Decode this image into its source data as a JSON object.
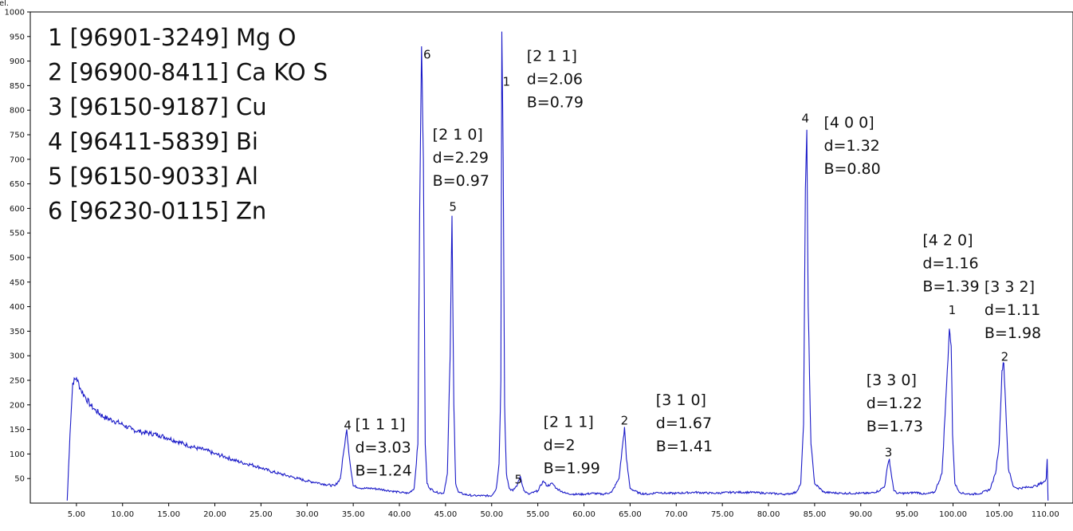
{
  "chart_data": {
    "type": "line",
    "ylabel": "el.",
    "xlim": [
      0,
      113
    ],
    "ylim": [
      0,
      1000
    ],
    "x_ticks": [
      "5.00",
      "10.00",
      "15.00",
      "20.00",
      "25.00",
      "30.00",
      "35.00",
      "40.00",
      "45.00",
      "50.00",
      "55.00",
      "60.00",
      "65.00",
      "70.00",
      "75.00",
      "80.00",
      "85.00",
      "90.00",
      "95.00",
      "100.00",
      "105.00",
      "110.00"
    ],
    "y_ticks": [
      "50",
      "100",
      "150",
      "200",
      "250",
      "300",
      "350",
      "400",
      "450",
      "500",
      "550",
      "600",
      "650",
      "700",
      "750",
      "800",
      "850",
      "900",
      "950",
      "1000"
    ],
    "colors": {
      "line": "#1a1ac8",
      "axis": "#000000"
    },
    "legend": [
      "1 [96901-3249] Mg O",
      "2 [96900-8411] Ca KO S",
      "3 [96150-9187] Cu",
      "4 [96411-5839] Bi",
      "5 [96150-9033] Al",
      "6 [96230-0115] Zn"
    ],
    "peak_labels": [
      {
        "label": "4",
        "x": 34.4,
        "y": 150
      },
      {
        "label": "6",
        "x": 43.0,
        "y": 905
      },
      {
        "label": "5",
        "x": 45.8,
        "y": 595
      },
      {
        "label": "1",
        "x": 51.6,
        "y": 850
      },
      {
        "label": "5",
        "x": 52.9,
        "y": 40
      },
      {
        "label": "2",
        "x": 64.4,
        "y": 160
      },
      {
        "label": "4",
        "x": 84.0,
        "y": 775
      },
      {
        "label": "3",
        "x": 93.0,
        "y": 95
      },
      {
        "label": "1",
        "x": 99.9,
        "y": 385
      },
      {
        "label": "2",
        "x": 105.6,
        "y": 290
      }
    ],
    "annotations": [
      {
        "lines": [
          "[1 1 1]",
          "d=3.03",
          "B=1.24"
        ],
        "x": 35.2,
        "y": 150
      },
      {
        "lines": [
          "[2 1 0]",
          "d=2.29",
          "B=0.97"
        ],
        "x": 43.6,
        "y": 740
      },
      {
        "lines": [
          "[2 1 1]",
          "d=2.06",
          "B=0.79"
        ],
        "x": 53.8,
        "y": 900
      },
      {
        "lines": [
          "[2 1 1]",
          "d=2",
          "B=1.99"
        ],
        "x": 55.6,
        "y": 155
      },
      {
        "lines": [
          "[3 1 0]",
          "d=1.67",
          "B=1.41"
        ],
        "x": 67.8,
        "y": 200
      },
      {
        "lines": [
          "[4 0 0]",
          "d=1.32",
          "B=0.80"
        ],
        "x": 86.0,
        "y": 765
      },
      {
        "lines": [
          "[3 3 0]",
          "d=1.22",
          "B=1.73"
        ],
        "x": 90.6,
        "y": 240
      },
      {
        "lines": [
          "[4 2 0]",
          "d=1.16",
          "B=1.39"
        ],
        "x": 96.7,
        "y": 525
      },
      {
        "lines": [
          "[3 3 2]",
          "d=1.11",
          "B=1.98"
        ],
        "x": 103.4,
        "y": 430
      }
    ],
    "series": [
      {
        "x": [
          4.0,
          4.3,
          4.6,
          5.0,
          5.5,
          6.0,
          6.5,
          7.0,
          8.0,
          9.0,
          10.0,
          11.0,
          12.0,
          13.0,
          14.0,
          15.0,
          16.0,
          17.0,
          18.0,
          19.0,
          20.0,
          21.0,
          22.0,
          23.0,
          24.0,
          25.0,
          26.0,
          27.0,
          28.0,
          29.0,
          30.0,
          31.0,
          32.0,
          33.0,
          33.6,
          34.0,
          34.3,
          34.6,
          35.0,
          36.0,
          37.0,
          38.0,
          39.0,
          40.0,
          41.0,
          41.6,
          42.0,
          42.2,
          42.4,
          42.6,
          42.8,
          43.0,
          43.3,
          44.0,
          44.8,
          45.2,
          45.5,
          45.7,
          45.9,
          46.1,
          46.4,
          47.0,
          48.0,
          49.0,
          50.0,
          50.5,
          50.8,
          51.0,
          51.1,
          51.25,
          51.4,
          51.6,
          51.9,
          52.3,
          52.8,
          53.1,
          53.5,
          54.0,
          55.0,
          55.6,
          56.0,
          56.6,
          57.0,
          58.0,
          59.0,
          60.0,
          61.0,
          62.0,
          63.0,
          63.8,
          64.2,
          64.4,
          64.6,
          65.0,
          66.0,
          67.0,
          68.0,
          69.0,
          70.0,
          72.0,
          74.0,
          76.0,
          78.0,
          80.0,
          82.0,
          83.0,
          83.5,
          83.8,
          84.0,
          84.15,
          84.3,
          84.6,
          85.0,
          86.0,
          88.0,
          90.0,
          91.0,
          92.0,
          92.6,
          92.9,
          93.1,
          93.3,
          93.6,
          94.0,
          95.0,
          96.0,
          97.0,
          98.0,
          98.8,
          99.3,
          99.6,
          99.8,
          99.95,
          100.2,
          100.6,
          101.0,
          102.0,
          103.0,
          104.0,
          104.6,
          105.0,
          105.3,
          105.5,
          105.7,
          106.0,
          106.5,
          107.0,
          108.0,
          109.0,
          110.0,
          110.1,
          110.2,
          110.3
        ],
        "y": [
          5,
          140,
          245,
          255,
          230,
          215,
          200,
          190,
          175,
          168,
          160,
          150,
          145,
          142,
          138,
          132,
          125,
          118,
          112,
          108,
          100,
          95,
          88,
          82,
          78,
          72,
          65,
          60,
          55,
          50,
          45,
          42,
          38,
          35,
          50,
          110,
          150,
          90,
          35,
          30,
          30,
          28,
          25,
          22,
          20,
          30,
          120,
          600,
          930,
          700,
          120,
          40,
          30,
          22,
          20,
          60,
          300,
          585,
          200,
          40,
          22,
          18,
          15,
          15,
          15,
          30,
          80,
          250,
          960,
          700,
          200,
          60,
          30,
          25,
          38,
          55,
          25,
          18,
          25,
          45,
          35,
          40,
          30,
          20,
          18,
          18,
          20,
          18,
          22,
          50,
          120,
          155,
          90,
          30,
          20,
          18,
          22,
          20,
          20,
          22,
          20,
          22,
          22,
          20,
          18,
          22,
          40,
          160,
          640,
          760,
          400,
          120,
          40,
          22,
          20,
          20,
          20,
          25,
          35,
          75,
          90,
          60,
          25,
          20,
          20,
          22,
          18,
          22,
          60,
          240,
          355,
          320,
          140,
          40,
          25,
          20,
          18,
          20,
          28,
          60,
          120,
          270,
          285,
          200,
          70,
          35,
          30,
          32,
          35,
          45,
          50,
          90,
          5
        ]
      }
    ]
  }
}
